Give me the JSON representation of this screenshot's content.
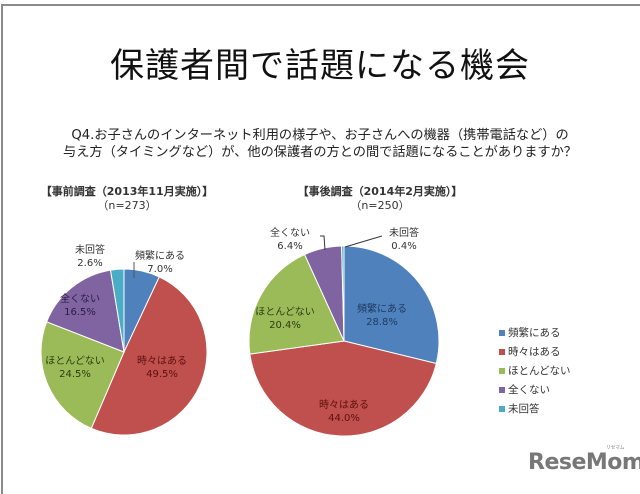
{
  "title": "保護者間で話題になる機会",
  "question": {
    "line1": "Q4.お子さんのインターネット利用の様子や、お子さんへの機器（携帯電話など）の",
    "line2": "与え方（タイミングなど）が、他の保護者の方との間で話題になることがありますか？"
  },
  "left_survey": {
    "header": "【事前調査（2013年11月実施）】",
    "n": "（n=273）"
  },
  "right_survey": {
    "header": "【事後調査（2014年2月実施）】",
    "n": "（n=250）"
  },
  "legend": [
    {
      "label": "頻繁にある",
      "color": "#4f81bd"
    },
    {
      "label": "時々はある",
      "color": "#c0504d"
    },
    {
      "label": "ほとんどない",
      "color": "#9bbb59"
    },
    {
      "label": "全くない",
      "color": "#8064a2"
    },
    {
      "label": "未回答",
      "color": "#4bacc6"
    }
  ],
  "logo": {
    "text": "ReseMom",
    "ruby": "リセマム"
  },
  "chart_data": [
    {
      "type": "pie",
      "title": "【事前調査（2013年11月実施）】(n=273)",
      "categories": [
        "頻繁にある",
        "時々はある",
        "ほとんどない",
        "全くない",
        "未回答"
      ],
      "values": [
        7.0,
        49.5,
        24.5,
        16.5,
        2.6
      ],
      "value_labels": [
        "7.0%",
        "49.5%",
        "24.5%",
        "16.5%",
        "2.6%"
      ],
      "colors": [
        "#4f81bd",
        "#c0504d",
        "#9bbb59",
        "#8064a2",
        "#4bacc6"
      ]
    },
    {
      "type": "pie",
      "title": "【事後調査（2014年2月実施）】(n=250)",
      "categories": [
        "頻繁にある",
        "時々はある",
        "ほとんどない",
        "全くない",
        "未回答"
      ],
      "values": [
        28.8,
        44.0,
        20.4,
        6.4,
        0.4
      ],
      "value_labels": [
        "28.8%",
        "44.0%",
        "20.4%",
        "6.4%",
        "0.4%"
      ],
      "colors": [
        "#4f81bd",
        "#c0504d",
        "#9bbb59",
        "#8064a2",
        "#4bacc6"
      ]
    }
  ]
}
